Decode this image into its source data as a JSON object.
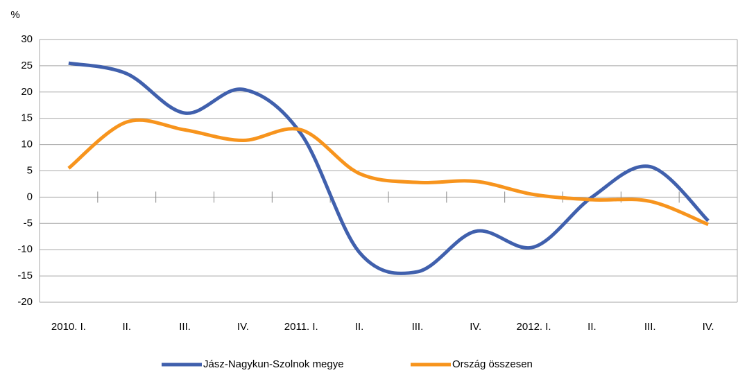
{
  "chart_data": {
    "type": "line",
    "y_label": "%",
    "categories": [
      "2010. I.",
      "II.",
      "III.",
      "IV.",
      "2011. I.",
      "II.",
      "III.",
      "IV.",
      "2012. I.",
      "II.",
      "III.",
      "IV."
    ],
    "series": [
      {
        "name": "Jász-Nagykun-Szolnok megye",
        "color": "#4060ad",
        "values": [
          25.5,
          23.5,
          16,
          20.5,
          12,
          -10.5,
          -14.2,
          -6.5,
          -9.5,
          0,
          5.8,
          -4.5
        ]
      },
      {
        "name": "Ország összesen",
        "color": "#f7941d",
        "values": [
          5.5,
          14.3,
          12.8,
          10.8,
          12.8,
          4.5,
          2.8,
          3,
          0.5,
          -0.5,
          -0.8,
          -5.2
        ]
      }
    ],
    "ylim": [
      -20,
      30
    ],
    "yticks": [
      -20,
      -15,
      -10,
      -5,
      0,
      5,
      10,
      15,
      20,
      25,
      30
    ],
    "grid": true,
    "legend": "bottom"
  }
}
